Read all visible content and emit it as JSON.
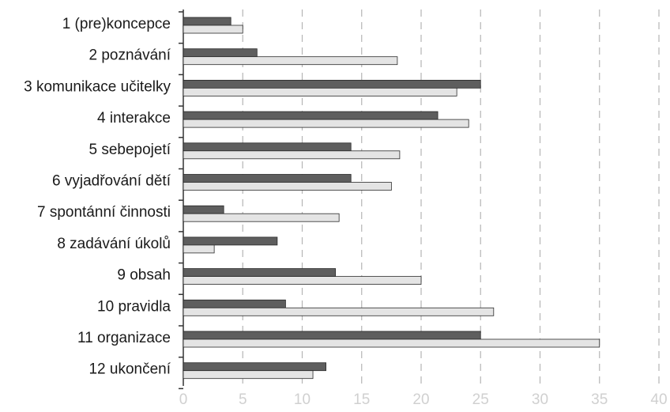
{
  "chart_data": {
    "type": "bar",
    "orientation": "horizontal",
    "categories": [
      "1 (pre)koncepce",
      "2 poznávání",
      "3 komunikace učitelky",
      "4 interakce",
      "5 sebepojetí",
      "6 vyjadřování dětí",
      "7 spontánní činnosti",
      "8 zadávání úkolů",
      "9 obsah",
      "10 pravidla",
      "11 organizace",
      "12 ukončení"
    ],
    "series": [
      {
        "color": "#5e5e5e",
        "values": [
          4,
          6.2,
          25,
          21.4,
          14.1,
          14.1,
          3.4,
          7.9,
          12.8,
          8.6,
          25,
          12
        ]
      },
      {
        "color": "#e4e4e4",
        "values": [
          5,
          18,
          23,
          24,
          18.2,
          17.5,
          13.1,
          2.6,
          20,
          26.1,
          35,
          10.9
        ]
      }
    ],
    "xlim": [
      0,
      40
    ],
    "xticks": [
      "0",
      "5",
      "10",
      "15",
      "20",
      "25",
      "30",
      "35",
      "40"
    ],
    "grid": true,
    "legend": "none"
  }
}
